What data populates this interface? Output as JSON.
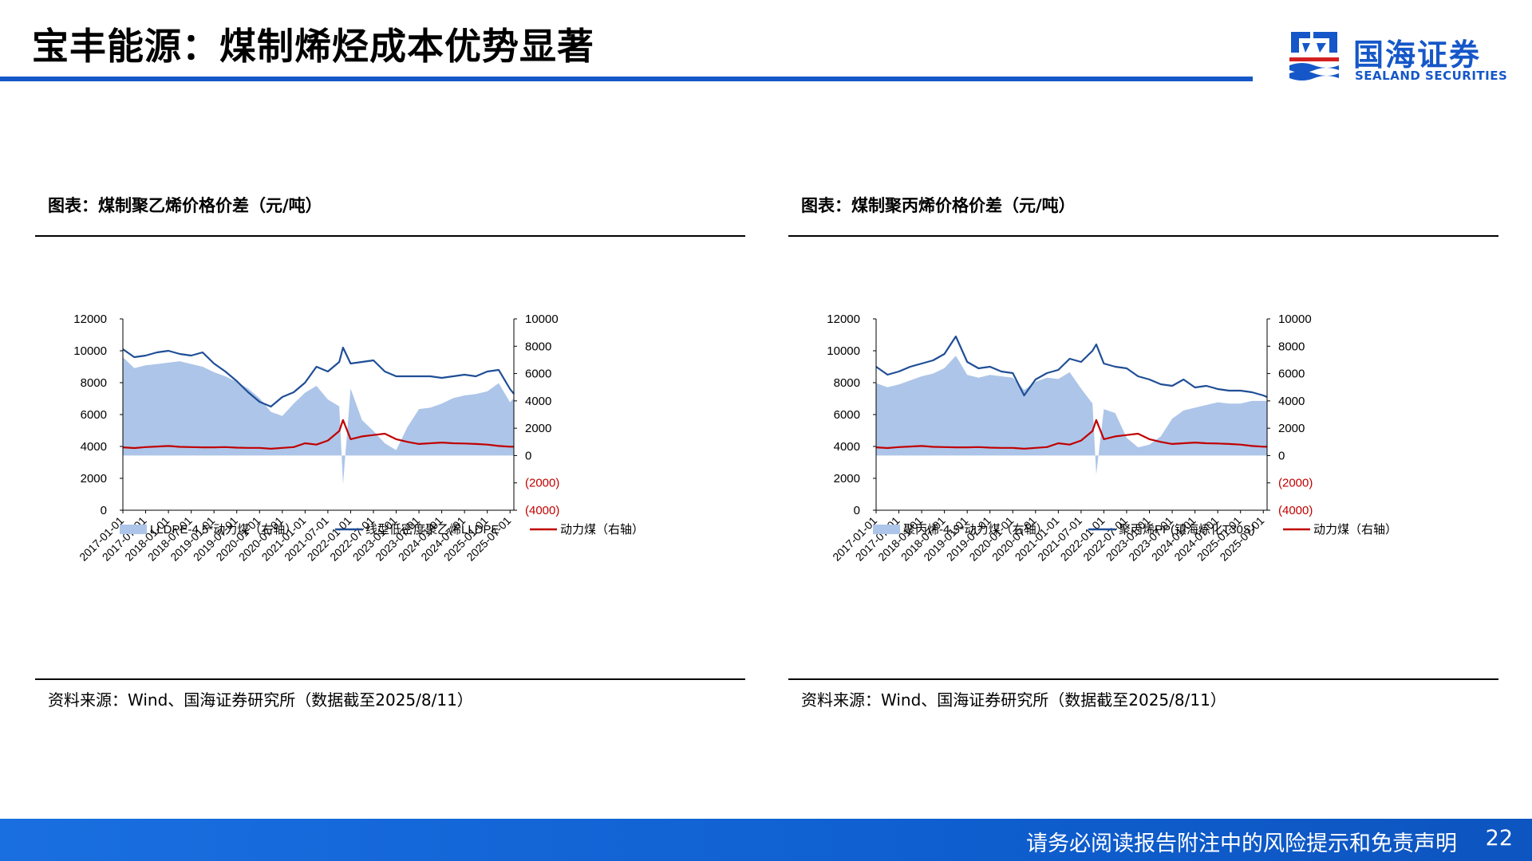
{
  "header": {
    "title": "宝丰能源：煤制烯烃成本优势显著",
    "logo_text": "国海证券",
    "logo_sub": "SEALAND SECURITIES"
  },
  "colors": {
    "brand_blue": "#1557c8",
    "area": "#adc5e8",
    "line_blue": "#1f4e96",
    "line_red": "#c00000"
  },
  "charts": [
    {
      "fig_title": "图表：煤制聚乙烯价格价差（元/吨）",
      "source": "资料来源：Wind、国海证券研究所（数据截至2025/8/11）",
      "chart_data": {
        "type": "area",
        "x_ticks": [
          "2017-01-01",
          "2017-07-01",
          "2018-01-01",
          "2018-07-01",
          "2019-01-01",
          "2019-07-01",
          "2020-01-01",
          "2020-07-01",
          "2021-01-01",
          "2021-07-01",
          "2022-01-01",
          "2022-07-01",
          "2023-01-01",
          "2023-07-01",
          "2024-01-01",
          "2024-07-01",
          "2025-01-01",
          "2025-07-01"
        ],
        "y_left": {
          "min": 0,
          "max": 12000,
          "ticks": [
            "0",
            "2000",
            "4000",
            "6000",
            "8000",
            "10000",
            "12000"
          ]
        },
        "y_right": {
          "min": -4000,
          "max": 10000,
          "ticks": [
            "(4000)",
            "(2000)",
            "0",
            "2000",
            "4000",
            "6000",
            "8000",
            "10000"
          ]
        },
        "series": [
          {
            "name": "LLDPE-4.5*动力煤（右轴）",
            "type": "area",
            "axis": "right",
            "x": [
              "2017-01",
              "2017-04",
              "2017-07",
              "2017-10",
              "2018-01",
              "2018-04",
              "2018-07",
              "2018-10",
              "2019-01",
              "2019-04",
              "2019-07",
              "2019-10",
              "2020-01",
              "2020-04",
              "2020-07",
              "2020-10",
              "2021-01",
              "2021-04",
              "2021-07",
              "2021-10",
              "2021-11",
              "2022-01",
              "2022-04",
              "2022-07",
              "2022-10",
              "2023-01",
              "2023-04",
              "2023-07",
              "2023-10",
              "2024-01",
              "2024-04",
              "2024-07",
              "2024-10",
              "2025-01",
              "2025-04",
              "2025-07",
              "2025-08"
            ],
            "y": [
              7200,
              6400,
              6600,
              6700,
              6800,
              6900,
              6700,
              6500,
              6100,
              5800,
              5400,
              4900,
              4200,
              3200,
              2900,
              3800,
              4600,
              5100,
              4100,
              3600,
              -2100,
              4900,
              2600,
              1800,
              900,
              400,
              2100,
              3400,
              3500,
              3800,
              4200,
              4400,
              4500,
              4700,
              5300,
              3900,
              4200
            ]
          },
          {
            "name": "线型低密度聚乙烯LLDPE",
            "type": "line",
            "axis": "left",
            "x": [
              "2017-01",
              "2017-04",
              "2017-07",
              "2017-10",
              "2018-01",
              "2018-04",
              "2018-07",
              "2018-10",
              "2019-01",
              "2019-04",
              "2019-07",
              "2019-10",
              "2020-01",
              "2020-04",
              "2020-07",
              "2020-10",
              "2021-01",
              "2021-04",
              "2021-07",
              "2021-10",
              "2021-11",
              "2022-01",
              "2022-04",
              "2022-07",
              "2022-10",
              "2023-01",
              "2023-04",
              "2023-07",
              "2023-10",
              "2024-01",
              "2024-04",
              "2024-07",
              "2024-10",
              "2025-01",
              "2025-04",
              "2025-07",
              "2025-08"
            ],
            "y": [
              10100,
              9600,
              9700,
              9900,
              10000,
              9800,
              9700,
              9900,
              9200,
              8700,
              8100,
              7400,
              6800,
              6500,
              7100,
              7400,
              8000,
              9000,
              8700,
              9300,
              10200,
              9200,
              9300,
              9400,
              8700,
              8400,
              8400,
              8400,
              8400,
              8300,
              8400,
              8500,
              8400,
              8700,
              8800,
              7600,
              7300
            ]
          },
          {
            "name": "动力煤（右轴）",
            "type": "line",
            "axis": "right",
            "x": [
              "2017-01",
              "2017-04",
              "2017-07",
              "2017-10",
              "2018-01",
              "2018-04",
              "2018-07",
              "2018-10",
              "2019-01",
              "2019-04",
              "2019-07",
              "2019-10",
              "2020-01",
              "2020-04",
              "2020-07",
              "2020-10",
              "2021-01",
              "2021-04",
              "2021-07",
              "2021-10",
              "2021-11",
              "2022-01",
              "2022-04",
              "2022-07",
              "2022-10",
              "2023-01",
              "2023-04",
              "2023-07",
              "2023-10",
              "2024-01",
              "2024-04",
              "2024-07",
              "2024-10",
              "2025-01",
              "2025-04",
              "2025-07",
              "2025-08"
            ],
            "y": [
              600,
              550,
              620,
              660,
              700,
              640,
              620,
              600,
              600,
              620,
              580,
              560,
              560,
              500,
              560,
              620,
              900,
              800,
              1100,
              1800,
              2600,
              1200,
              1400,
              1500,
              1600,
              1200,
              1000,
              850,
              900,
              950,
              900,
              880,
              850,
              800,
              700,
              650,
              650
            ]
          }
        ],
        "legend_position": "bottom",
        "grid": false
      }
    },
    {
      "fig_title": "图表：煤制聚丙烯价格价差（元/吨）",
      "source": "资料来源：Wind、国海证券研究所（数据截至2025/8/11）",
      "chart_data": {
        "type": "area",
        "x_ticks": [
          "2017-01-01",
          "2017-07-01",
          "2018-01-01",
          "2018-07-01",
          "2019-01-01",
          "2019-07-01",
          "2020-01-01",
          "2020-07-01",
          "2021-01-01",
          "2021-07-01",
          "2022-01-01",
          "2022-07-01",
          "2023-01-01",
          "2023-07-01",
          "2024-01-01",
          "2024-07-01",
          "2025-01-01",
          "2025-07-01"
        ],
        "y_left": {
          "min": 0,
          "max": 12000,
          "ticks": [
            "0",
            "2000",
            "4000",
            "6000",
            "8000",
            "10000",
            "12000"
          ]
        },
        "y_right": {
          "min": -4000,
          "max": 10000,
          "ticks": [
            "(4000)",
            "(2000)",
            "0",
            "2000",
            "4000",
            "6000",
            "8000",
            "10000"
          ]
        },
        "series": [
          {
            "name": "聚丙烯-4.5*动力煤（右轴）",
            "type": "area",
            "axis": "right",
            "x": [
              "2017-01",
              "2017-04",
              "2017-07",
              "2017-10",
              "2018-01",
              "2018-04",
              "2018-07",
              "2018-10",
              "2019-01",
              "2019-04",
              "2019-07",
              "2019-10",
              "2020-01",
              "2020-04",
              "2020-07",
              "2020-10",
              "2021-01",
              "2021-04",
              "2021-07",
              "2021-10",
              "2021-11",
              "2022-01",
              "2022-04",
              "2022-07",
              "2022-10",
              "2023-01",
              "2023-04",
              "2023-07",
              "2023-10",
              "2024-01",
              "2024-04",
              "2024-07",
              "2024-10",
              "2025-01",
              "2025-04",
              "2025-07",
              "2025-08"
            ],
            "y": [
              5300,
              5000,
              5200,
              5500,
              5800,
              6000,
              6400,
              7300,
              5900,
              5700,
              5900,
              5800,
              5700,
              4800,
              5400,
              5700,
              5600,
              6100,
              4900,
              3800,
              -1400,
              3400,
              3100,
              1300,
              600,
              800,
              1400,
              2700,
              3300,
              3500,
              3700,
              3900,
              3800,
              3800,
              4000,
              4000,
              4000
            ]
          },
          {
            "name": "聚丙烯PP(镇海炼化T30S)",
            "type": "line",
            "axis": "left",
            "x": [
              "2017-01",
              "2017-04",
              "2017-07",
              "2017-10",
              "2018-01",
              "2018-04",
              "2018-07",
              "2018-10",
              "2019-01",
              "2019-04",
              "2019-07",
              "2019-10",
              "2020-01",
              "2020-04",
              "2020-07",
              "2020-10",
              "2021-01",
              "2021-04",
              "2021-07",
              "2021-10",
              "2021-11",
              "2022-01",
              "2022-04",
              "2022-07",
              "2022-10",
              "2023-01",
              "2023-04",
              "2023-07",
              "2023-10",
              "2024-01",
              "2024-04",
              "2024-07",
              "2024-10",
              "2025-01",
              "2025-04",
              "2025-07",
              "2025-08"
            ],
            "y": [
              9000,
              8500,
              8700,
              9000,
              9200,
              9400,
              9800,
              10900,
              9300,
              8900,
              9000,
              8700,
              8600,
              7200,
              8200,
              8600,
              8800,
              9500,
              9300,
              10000,
              10400,
              9200,
              9000,
              8900,
              8400,
              8200,
              7900,
              7800,
              8200,
              7700,
              7800,
              7600,
              7500,
              7500,
              7400,
              7200,
              7100
            ]
          },
          {
            "name": "动力煤（右轴）",
            "type": "line",
            "axis": "right",
            "x": [
              "2017-01",
              "2017-04",
              "2017-07",
              "2017-10",
              "2018-01",
              "2018-04",
              "2018-07",
              "2018-10",
              "2019-01",
              "2019-04",
              "2019-07",
              "2019-10",
              "2020-01",
              "2020-04",
              "2020-07",
              "2020-10",
              "2021-01",
              "2021-04",
              "2021-07",
              "2021-10",
              "2021-11",
              "2022-01",
              "2022-04",
              "2022-07",
              "2022-10",
              "2023-01",
              "2023-04",
              "2023-07",
              "2023-10",
              "2024-01",
              "2024-04",
              "2024-07",
              "2024-10",
              "2025-01",
              "2025-04",
              "2025-07",
              "2025-08"
            ],
            "y": [
              600,
              550,
              620,
              660,
              700,
              640,
              620,
              600,
              600,
              620,
              580,
              560,
              560,
              500,
              560,
              620,
              900,
              800,
              1100,
              1800,
              2600,
              1200,
              1400,
              1500,
              1600,
              1200,
              1000,
              850,
              900,
              950,
              900,
              880,
              850,
              800,
              700,
              650,
              650
            ]
          }
        ],
        "legend_position": "bottom",
        "grid": false
      }
    }
  ],
  "footer": {
    "disclaimer": "请务必阅读报告附注中的风险提示和免责声明",
    "page": "22"
  }
}
